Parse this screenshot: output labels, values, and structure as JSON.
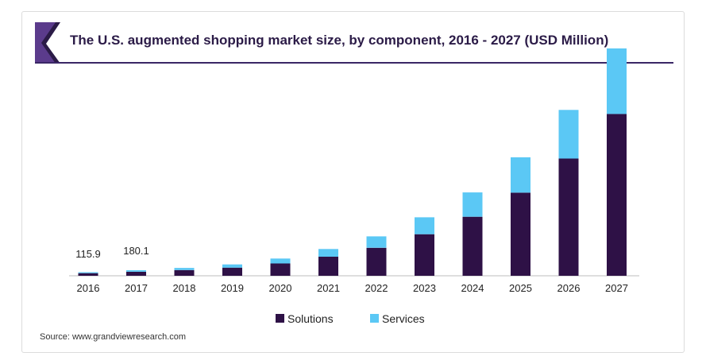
{
  "colors": {
    "solutions": "#2e1146",
    "services": "#5bc8f5",
    "title_banner": "#5b3b8c",
    "title_banner_dark": "#2b1b47",
    "title_text": "#2b1b47"
  },
  "chart_data": {
    "type": "bar",
    "stacked": true,
    "title": "The U.S. augmented shopping market size, by component, 2016 - 2027 (USD Million)",
    "categories": [
      "2016",
      "2017",
      "2018",
      "2019",
      "2020",
      "2021",
      "2022",
      "2023",
      "2024",
      "2025",
      "2026",
      "2027"
    ],
    "series": [
      {
        "name": "Solutions",
        "values": [
          85,
          130,
          185,
          265,
          400,
          620,
          910,
          1350,
          1920,
          2700,
          3810,
          5260
        ]
      },
      {
        "name": "Services",
        "values": [
          31,
          50,
          70,
          105,
          160,
          250,
          370,
          550,
          790,
          1150,
          1580,
          2130
        ]
      }
    ],
    "data_labels": [
      {
        "category": "2016",
        "text": "115.9"
      },
      {
        "category": "2017",
        "text": "180.1"
      }
    ],
    "ylim": [
      0,
      7800
    ],
    "xlabel": "",
    "ylabel": "",
    "grid": false,
    "legend": "bottom-center",
    "source": "Source: www.grandviewresearch.com"
  }
}
